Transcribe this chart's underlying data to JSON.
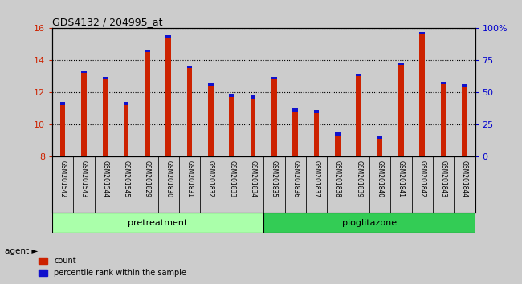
{
  "title": "GDS4132 / 204995_at",
  "samples": [
    "GSM201542",
    "GSM201543",
    "GSM201544",
    "GSM201545",
    "GSM201829",
    "GSM201830",
    "GSM201831",
    "GSM201832",
    "GSM201833",
    "GSM201834",
    "GSM201835",
    "GSM201836",
    "GSM201837",
    "GSM201838",
    "GSM201839",
    "GSM201840",
    "GSM201841",
    "GSM201842",
    "GSM201843",
    "GSM201844"
  ],
  "count_values": [
    11.2,
    13.2,
    12.8,
    11.2,
    14.5,
    15.4,
    13.5,
    12.4,
    11.7,
    11.6,
    12.8,
    10.8,
    10.7,
    9.3,
    13.0,
    9.1,
    13.7,
    15.6,
    12.5,
    12.3
  ],
  "bar_base": 8.0,
  "ylim": [
    8,
    16
  ],
  "yticks": [
    8,
    10,
    12,
    14,
    16
  ],
  "y2lim": [
    0,
    100
  ],
  "y2ticks": [
    0,
    25,
    50,
    75,
    100
  ],
  "y2ticklabels": [
    "0",
    "25",
    "50",
    "75",
    "100%"
  ],
  "count_color": "#cc2200",
  "percentile_color": "#1111cc",
  "bar_width": 0.25,
  "pct_bar_height": 0.18,
  "pretreatment_indices": [
    0,
    9
  ],
  "pioglitazone_indices": [
    10,
    19
  ],
  "pretreatment_color": "#aaffaa",
  "pioglitazone_color": "#33cc55",
  "agent_label": "agent",
  "pretreatment_label": "pretreatment",
  "pioglitazone_label": "pioglitazone",
  "legend_count": "count",
  "legend_percentile": "percentile rank within the sample",
  "left_yaxis_color": "#cc2200",
  "right_yaxis_color": "#0000cc",
  "background_color": "#cccccc",
  "cell_color": "#cccccc",
  "grid_color": "#000000"
}
